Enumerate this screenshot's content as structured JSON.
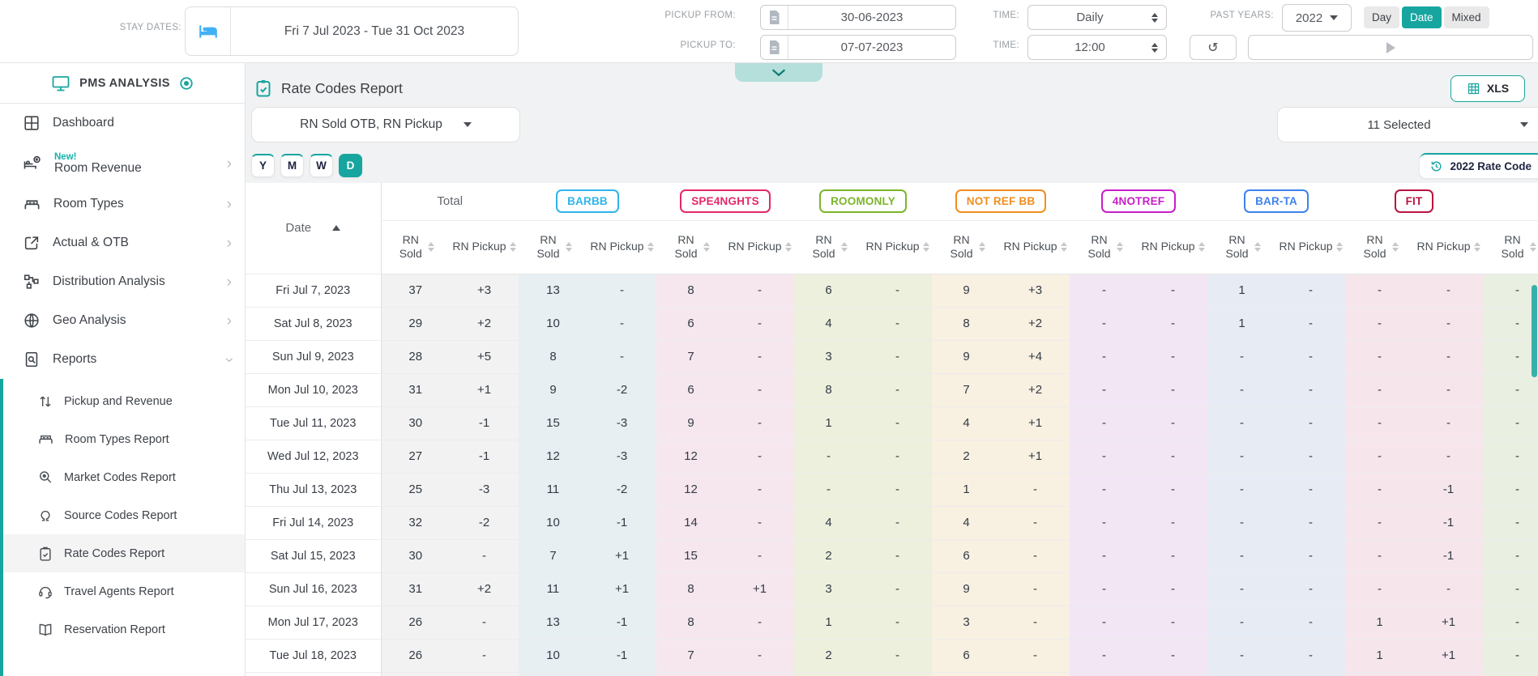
{
  "icons": {
    "chevron_right": "›",
    "refresh": "↺"
  },
  "topbar": {
    "stay_dates_label": "STAY DATES:",
    "stay_dates_value": "Fri 7 Jul 2023 - Tue 31 Oct 2023",
    "pickup_from_label": "PICKUP FROM:",
    "pickup_from_value": "30-06-2023",
    "pickup_to_label": "PICKUP TO:",
    "pickup_to_value": "07-07-2023",
    "time_label_1": "TIME:",
    "time_granularity": "Daily",
    "time_label_2": "TIME:",
    "time_value": "12:00",
    "past_years_label": "PAST YEARS:",
    "past_years_value": "2022",
    "toggle_day": "Day",
    "toggle_date": "Date",
    "toggle_mixed": "Mixed",
    "selected_toggle": "Date"
  },
  "sidebar": {
    "brand": "PMS ANALYSIS",
    "items": [
      {
        "label": "Dashboard"
      },
      {
        "label": "Room Revenue",
        "badge": "New!"
      },
      {
        "label": "Room Types"
      },
      {
        "label": "Actual & OTB"
      },
      {
        "label": "Distribution Analysis"
      },
      {
        "label": "Geo Analysis"
      },
      {
        "label": "Reports",
        "expanded": true
      }
    ],
    "report_items": [
      {
        "label": "Pickup and Revenue"
      },
      {
        "label": "Room Types Report"
      },
      {
        "label": "Market Codes Report"
      },
      {
        "label": "Source Codes Report"
      },
      {
        "label": "Rate Codes Report",
        "active": true
      },
      {
        "label": "Travel Agents Report"
      },
      {
        "label": "Reservation Report"
      }
    ]
  },
  "main": {
    "title": "Rate Codes Report",
    "xls_label": "XLS",
    "metric_dropdown": "RN Sold OTB, RN Pickup",
    "selected_dropdown": "11 Selected",
    "granularity": [
      "Y",
      "M",
      "W",
      "D"
    ],
    "active_granularity": "D",
    "badge_2022": "2022 Rate Code",
    "accent_color": "#17a5a0"
  },
  "table": {
    "date_header": "Date",
    "col_headers": [
      "RN Sold",
      "RN Pickup"
    ],
    "groups": [
      {
        "label": "Total",
        "chip": false,
        "color": "#62676d",
        "bg": "#f2f2f2"
      },
      {
        "label": "BARBB",
        "chip": true,
        "color": "#2fb5ea",
        "bg": "#e7eff3"
      },
      {
        "label": "SPE4NGHTS",
        "chip": true,
        "color": "#e3286b",
        "bg": "#f6e7ee"
      },
      {
        "label": "ROOMONLY",
        "chip": true,
        "color": "#7cb52b",
        "bg": "#edf0dc"
      },
      {
        "label": "NOT REF BB",
        "chip": true,
        "color": "#ef8e1f",
        "bg": "#f8f0e1"
      },
      {
        "label": "4NOTREF",
        "chip": true,
        "color": "#c81ec8",
        "bg": "#f2e6f4"
      },
      {
        "label": "BAR-TA",
        "chip": true,
        "color": "#3e82ec",
        "bg": "#e7ecf4"
      },
      {
        "label": "FIT",
        "chip": true,
        "color": "#b81441",
        "bg": "#f6e6ec"
      },
      {
        "label": "",
        "chip": true,
        "color": "#3a7d2c",
        "bg": "#e9f0e2"
      }
    ],
    "rows": [
      {
        "date": "Fri Jul 7, 2023",
        "values": [
          "37",
          "+3",
          "13",
          "-",
          "8",
          "-",
          "6",
          "-",
          "9",
          "+3",
          "-",
          "-",
          "1",
          "-",
          "-",
          "-",
          "-"
        ]
      },
      {
        "date": "Sat Jul 8, 2023",
        "values": [
          "29",
          "+2",
          "10",
          "-",
          "6",
          "-",
          "4",
          "-",
          "8",
          "+2",
          "-",
          "-",
          "1",
          "-",
          "-",
          "-",
          "-"
        ]
      },
      {
        "date": "Sun Jul 9, 2023",
        "values": [
          "28",
          "+5",
          "8",
          "-",
          "7",
          "-",
          "3",
          "-",
          "9",
          "+4",
          "-",
          "-",
          "-",
          "-",
          "-",
          "-",
          "-"
        ]
      },
      {
        "date": "Mon Jul 10, 2023",
        "values": [
          "31",
          "+1",
          "9",
          "-2",
          "6",
          "-",
          "8",
          "-",
          "7",
          "+2",
          "-",
          "-",
          "-",
          "-",
          "-",
          "-",
          "-"
        ]
      },
      {
        "date": "Tue Jul 11, 2023",
        "values": [
          "30",
          "-1",
          "15",
          "-3",
          "9",
          "-",
          "1",
          "-",
          "4",
          "+1",
          "-",
          "-",
          "-",
          "-",
          "-",
          "-",
          "-"
        ]
      },
      {
        "date": "Wed Jul 12, 2023",
        "values": [
          "27",
          "-1",
          "12",
          "-3",
          "12",
          "-",
          "-",
          "-",
          "2",
          "+1",
          "-",
          "-",
          "-",
          "-",
          "-",
          "-",
          "-"
        ]
      },
      {
        "date": "Thu Jul 13, 2023",
        "values": [
          "25",
          "-3",
          "11",
          "-2",
          "12",
          "-",
          "-",
          "-",
          "1",
          "-",
          "-",
          "-",
          "-",
          "-",
          "-",
          "-1",
          "-"
        ]
      },
      {
        "date": "Fri Jul 14, 2023",
        "values": [
          "32",
          "-2",
          "10",
          "-1",
          "14",
          "-",
          "4",
          "-",
          "4",
          "-",
          "-",
          "-",
          "-",
          "-",
          "-",
          "-1",
          "-"
        ]
      },
      {
        "date": "Sat Jul 15, 2023",
        "values": [
          "30",
          "-",
          "7",
          "+1",
          "15",
          "-",
          "2",
          "-",
          "6",
          "-",
          "-",
          "-",
          "-",
          "-",
          "-",
          "-1",
          "-"
        ]
      },
      {
        "date": "Sun Jul 16, 2023",
        "values": [
          "31",
          "+2",
          "11",
          "+1",
          "8",
          "+1",
          "3",
          "-",
          "9",
          "-",
          "-",
          "-",
          "-",
          "-",
          "-",
          "-",
          "-"
        ]
      },
      {
        "date": "Mon Jul 17, 2023",
        "values": [
          "26",
          "-",
          "13",
          "-1",
          "8",
          "-",
          "1",
          "-",
          "3",
          "-",
          "-",
          "-",
          "-",
          "-",
          "1",
          "+1",
          "-"
        ]
      },
      {
        "date": "Tue Jul 18, 2023",
        "values": [
          "26",
          "-",
          "10",
          "-1",
          "7",
          "-",
          "2",
          "-",
          "6",
          "-",
          "-",
          "-",
          "-",
          "-",
          "1",
          "+1",
          "-"
        ]
      }
    ]
  }
}
